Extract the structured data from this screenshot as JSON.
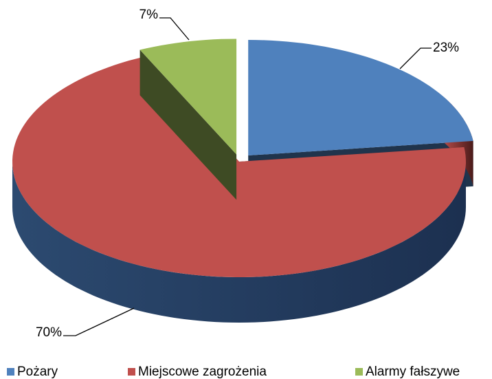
{
  "chart_data": {
    "type": "pie",
    "categories": [
      "Pożary",
      "Miejscowe zagrożenia",
      "Alarmy fałszywe"
    ],
    "values": [
      23,
      70,
      7
    ],
    "value_labels": [
      "23%",
      "70%",
      "7%"
    ],
    "colors": [
      "#4f81bd",
      "#c0504d",
      "#9bbb59"
    ],
    "legend": "bottom"
  }
}
